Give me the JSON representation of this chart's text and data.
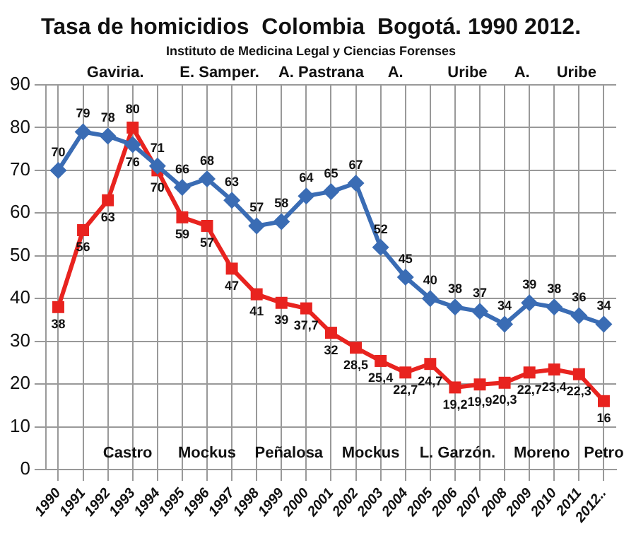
{
  "chart_data": {
    "type": "line",
    "title": "Tasa de homicidios  Colombia  Bogotá. 1990 2012.",
    "subtitle": "Instituto de Medicina Legal y Ciencias Forenses",
    "categories": [
      "1990",
      "1991",
      "1992",
      "1993",
      "1994",
      "1995",
      "1996",
      "1997",
      "1998",
      "1999",
      "2000",
      "2001",
      "2002",
      "2003",
      "2004",
      "2005",
      "2006",
      "2007",
      "2008",
      "2009",
      "2010",
      "2011",
      "2012.."
    ],
    "series": [
      {
        "color": "#3a6cb4",
        "marker": "diamond",
        "values": [
          70,
          79,
          78,
          76,
          71,
          66,
          68,
          63,
          57,
          58,
          64,
          65,
          67,
          52,
          45,
          40,
          38,
          37,
          34,
          39,
          38,
          36,
          34
        ],
        "value_labels": [
          "70",
          "79",
          "78",
          "76",
          "71",
          "66",
          "68",
          "63",
          "57",
          "58",
          "64",
          "65",
          "67",
          "52",
          "45",
          "40",
          "38",
          "37",
          "34",
          "39",
          "38",
          "36",
          "34"
        ]
      },
      {
        "color": "#e8231f",
        "marker": "square",
        "values": [
          38,
          56,
          63,
          80,
          70,
          59,
          57,
          47,
          41,
          39,
          37.7,
          32,
          28.5,
          25.4,
          22.7,
          24.7,
          19.2,
          19.9,
          20.3,
          22.7,
          23.4,
          22.3,
          16
        ],
        "value_labels": [
          "38",
          "56",
          "63",
          "80",
          "70",
          "59",
          "57",
          "47",
          "41",
          "39",
          "37,7",
          "32",
          "28,5",
          "25,4",
          "22,7",
          "24,7",
          "19,2",
          "19,9",
          "20,3",
          "22,7",
          "23,4",
          "22,3",
          "16"
        ]
      }
    ],
    "annotations": [
      "Gaviria.",
      "E. Samper.",
      "A. Pastrana",
      "A.",
      "Uribe",
      "A.",
      "Uribe",
      "Castro",
      "Mockus",
      "Peñalosa",
      "Mockus",
      "L. Garzón.",
      "Moreno",
      "Petro"
    ],
    "ylim": [
      0,
      90
    ],
    "yticks": [
      0,
      10,
      20,
      30,
      40,
      50,
      60,
      70,
      80,
      90
    ],
    "grid": true,
    "legend": false,
    "line_style": "solid"
  }
}
